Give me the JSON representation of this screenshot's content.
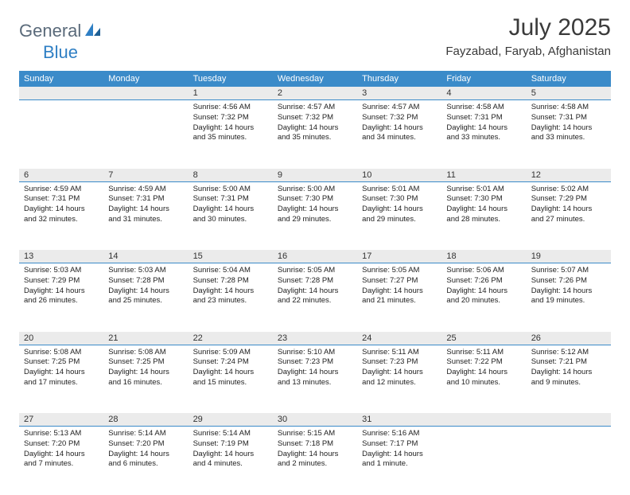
{
  "brand": {
    "part1": "General",
    "part2": "Blue"
  },
  "title": "July 2025",
  "location": "Fayzabad, Faryab, Afghanistan",
  "colors": {
    "header_bg": "#3b8bc9",
    "header_fg": "#ffffff",
    "daynum_bg": "#ebebeb",
    "accent_line": "#3b8bc9",
    "logo_gray": "#5a6a7a",
    "logo_blue": "#2f7fc4"
  },
  "day_names": [
    "Sunday",
    "Monday",
    "Tuesday",
    "Wednesday",
    "Thursday",
    "Friday",
    "Saturday"
  ],
  "weeks": [
    [
      null,
      null,
      {
        "n": "1",
        "sunrise": "Sunrise: 4:56 AM",
        "sunset": "Sunset: 7:32 PM",
        "day1": "Daylight: 14 hours",
        "day2": "and 35 minutes."
      },
      {
        "n": "2",
        "sunrise": "Sunrise: 4:57 AM",
        "sunset": "Sunset: 7:32 PM",
        "day1": "Daylight: 14 hours",
        "day2": "and 35 minutes."
      },
      {
        "n": "3",
        "sunrise": "Sunrise: 4:57 AM",
        "sunset": "Sunset: 7:32 PM",
        "day1": "Daylight: 14 hours",
        "day2": "and 34 minutes."
      },
      {
        "n": "4",
        "sunrise": "Sunrise: 4:58 AM",
        "sunset": "Sunset: 7:31 PM",
        "day1": "Daylight: 14 hours",
        "day2": "and 33 minutes."
      },
      {
        "n": "5",
        "sunrise": "Sunrise: 4:58 AM",
        "sunset": "Sunset: 7:31 PM",
        "day1": "Daylight: 14 hours",
        "day2": "and 33 minutes."
      }
    ],
    [
      {
        "n": "6",
        "sunrise": "Sunrise: 4:59 AM",
        "sunset": "Sunset: 7:31 PM",
        "day1": "Daylight: 14 hours",
        "day2": "and 32 minutes."
      },
      {
        "n": "7",
        "sunrise": "Sunrise: 4:59 AM",
        "sunset": "Sunset: 7:31 PM",
        "day1": "Daylight: 14 hours",
        "day2": "and 31 minutes."
      },
      {
        "n": "8",
        "sunrise": "Sunrise: 5:00 AM",
        "sunset": "Sunset: 7:31 PM",
        "day1": "Daylight: 14 hours",
        "day2": "and 30 minutes."
      },
      {
        "n": "9",
        "sunrise": "Sunrise: 5:00 AM",
        "sunset": "Sunset: 7:30 PM",
        "day1": "Daylight: 14 hours",
        "day2": "and 29 minutes."
      },
      {
        "n": "10",
        "sunrise": "Sunrise: 5:01 AM",
        "sunset": "Sunset: 7:30 PM",
        "day1": "Daylight: 14 hours",
        "day2": "and 29 minutes."
      },
      {
        "n": "11",
        "sunrise": "Sunrise: 5:01 AM",
        "sunset": "Sunset: 7:30 PM",
        "day1": "Daylight: 14 hours",
        "day2": "and 28 minutes."
      },
      {
        "n": "12",
        "sunrise": "Sunrise: 5:02 AM",
        "sunset": "Sunset: 7:29 PM",
        "day1": "Daylight: 14 hours",
        "day2": "and 27 minutes."
      }
    ],
    [
      {
        "n": "13",
        "sunrise": "Sunrise: 5:03 AM",
        "sunset": "Sunset: 7:29 PM",
        "day1": "Daylight: 14 hours",
        "day2": "and 26 minutes."
      },
      {
        "n": "14",
        "sunrise": "Sunrise: 5:03 AM",
        "sunset": "Sunset: 7:28 PM",
        "day1": "Daylight: 14 hours",
        "day2": "and 25 minutes."
      },
      {
        "n": "15",
        "sunrise": "Sunrise: 5:04 AM",
        "sunset": "Sunset: 7:28 PM",
        "day1": "Daylight: 14 hours",
        "day2": "and 23 minutes."
      },
      {
        "n": "16",
        "sunrise": "Sunrise: 5:05 AM",
        "sunset": "Sunset: 7:28 PM",
        "day1": "Daylight: 14 hours",
        "day2": "and 22 minutes."
      },
      {
        "n": "17",
        "sunrise": "Sunrise: 5:05 AM",
        "sunset": "Sunset: 7:27 PM",
        "day1": "Daylight: 14 hours",
        "day2": "and 21 minutes."
      },
      {
        "n": "18",
        "sunrise": "Sunrise: 5:06 AM",
        "sunset": "Sunset: 7:26 PM",
        "day1": "Daylight: 14 hours",
        "day2": "and 20 minutes."
      },
      {
        "n": "19",
        "sunrise": "Sunrise: 5:07 AM",
        "sunset": "Sunset: 7:26 PM",
        "day1": "Daylight: 14 hours",
        "day2": "and 19 minutes."
      }
    ],
    [
      {
        "n": "20",
        "sunrise": "Sunrise: 5:08 AM",
        "sunset": "Sunset: 7:25 PM",
        "day1": "Daylight: 14 hours",
        "day2": "and 17 minutes."
      },
      {
        "n": "21",
        "sunrise": "Sunrise: 5:08 AM",
        "sunset": "Sunset: 7:25 PM",
        "day1": "Daylight: 14 hours",
        "day2": "and 16 minutes."
      },
      {
        "n": "22",
        "sunrise": "Sunrise: 5:09 AM",
        "sunset": "Sunset: 7:24 PM",
        "day1": "Daylight: 14 hours",
        "day2": "and 15 minutes."
      },
      {
        "n": "23",
        "sunrise": "Sunrise: 5:10 AM",
        "sunset": "Sunset: 7:23 PM",
        "day1": "Daylight: 14 hours",
        "day2": "and 13 minutes."
      },
      {
        "n": "24",
        "sunrise": "Sunrise: 5:11 AM",
        "sunset": "Sunset: 7:23 PM",
        "day1": "Daylight: 14 hours",
        "day2": "and 12 minutes."
      },
      {
        "n": "25",
        "sunrise": "Sunrise: 5:11 AM",
        "sunset": "Sunset: 7:22 PM",
        "day1": "Daylight: 14 hours",
        "day2": "and 10 minutes."
      },
      {
        "n": "26",
        "sunrise": "Sunrise: 5:12 AM",
        "sunset": "Sunset: 7:21 PM",
        "day1": "Daylight: 14 hours",
        "day2": "and 9 minutes."
      }
    ],
    [
      {
        "n": "27",
        "sunrise": "Sunrise: 5:13 AM",
        "sunset": "Sunset: 7:20 PM",
        "day1": "Daylight: 14 hours",
        "day2": "and 7 minutes."
      },
      {
        "n": "28",
        "sunrise": "Sunrise: 5:14 AM",
        "sunset": "Sunset: 7:20 PM",
        "day1": "Daylight: 14 hours",
        "day2": "and 6 minutes."
      },
      {
        "n": "29",
        "sunrise": "Sunrise: 5:14 AM",
        "sunset": "Sunset: 7:19 PM",
        "day1": "Daylight: 14 hours",
        "day2": "and 4 minutes."
      },
      {
        "n": "30",
        "sunrise": "Sunrise: 5:15 AM",
        "sunset": "Sunset: 7:18 PM",
        "day1": "Daylight: 14 hours",
        "day2": "and 2 minutes."
      },
      {
        "n": "31",
        "sunrise": "Sunrise: 5:16 AM",
        "sunset": "Sunset: 7:17 PM",
        "day1": "Daylight: 14 hours",
        "day2": "and 1 minute."
      },
      null,
      null
    ]
  ]
}
